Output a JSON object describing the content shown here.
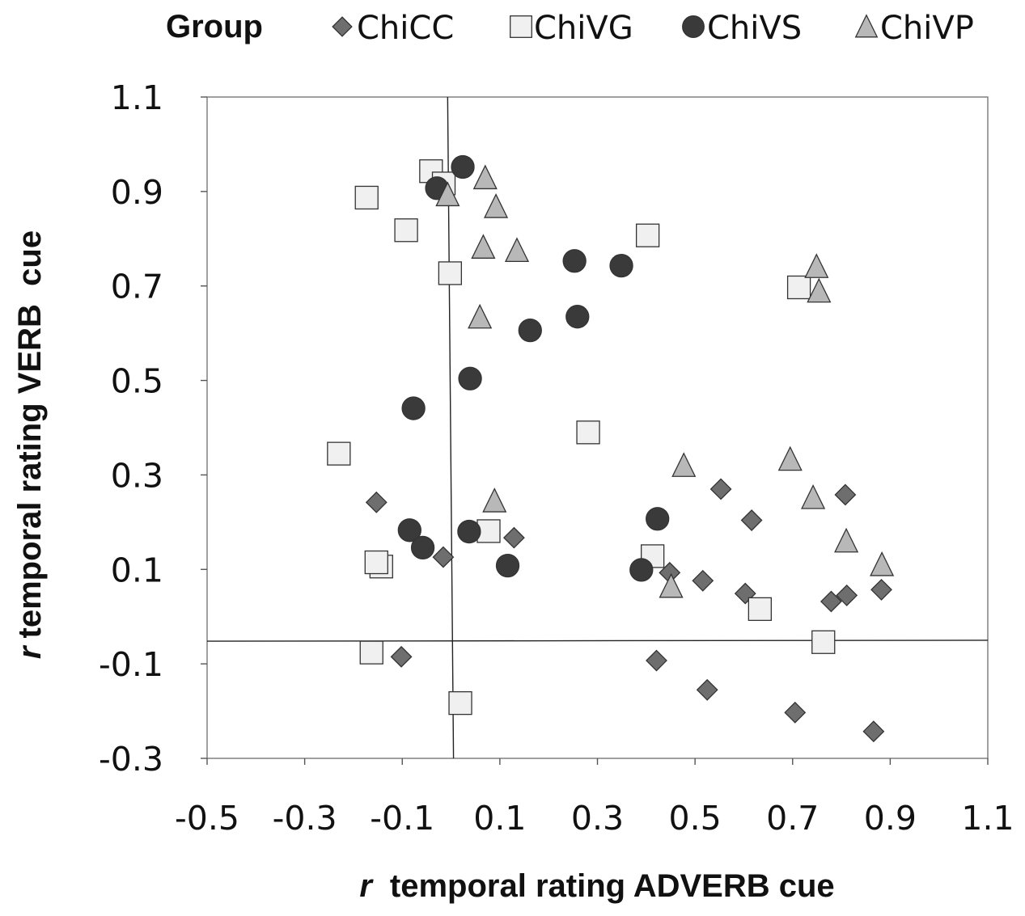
{
  "chart_data": {
    "type": "scatter",
    "legend_title": "Group",
    "legend_position": "top",
    "xlabel_italic": "r",
    "xlabel": "temporal rating ADVERB cue",
    "ylabel_italic": "r",
    "ylabel": "temporal rating VERB  cue",
    "xlim": [
      -0.5,
      1.1
    ],
    "ylim": [
      -0.3,
      1.1
    ],
    "xticks": [
      "-0.5",
      "-0.3",
      "-0.1",
      "0.1",
      "0.3",
      "0.5",
      "0.7",
      "0.9",
      "1.1"
    ],
    "yticks": [
      "1.1",
      "0.9",
      "0.7",
      "0.5",
      "0.3",
      "0.1",
      "-0.1",
      "-0.3"
    ],
    "reference_lines": {
      "horizontal": {
        "y_at_xmin": -0.052,
        "y_at_xmax": -0.05
      },
      "near_vertical": {
        "x_at_ymax": -0.007,
        "x_at_ymin": 0.005
      }
    },
    "series": [
      {
        "name": "ChiCC",
        "marker": "diamond",
        "color": "#6e6e6e",
        "points": [
          [
            -0.153,
            0.242
          ],
          [
            -0.102,
            -0.085
          ],
          [
            -0.016,
            0.126
          ],
          [
            0.129,
            0.167
          ],
          [
            0.448,
            0.093
          ],
          [
            0.516,
            0.076
          ],
          [
            0.553,
            0.27
          ],
          [
            0.603,
            0.049
          ],
          [
            0.616,
            0.204
          ],
          [
            0.779,
            0.032
          ],
          [
            0.811,
            0.045
          ],
          [
            0.808,
            0.258
          ],
          [
            0.882,
            0.057
          ],
          [
            0.421,
            -0.093
          ],
          [
            0.525,
            -0.155
          ],
          [
            0.705,
            -0.203
          ],
          [
            0.866,
            -0.243
          ]
        ]
      },
      {
        "name": "ChiVG",
        "marker": "square",
        "color": "#f0f0f0",
        "points": [
          [
            -0.173,
            0.887
          ],
          [
            -0.092,
            0.818
          ],
          [
            -0.041,
            0.943
          ],
          [
            -0.015,
            0.917
          ],
          [
            -0.002,
            0.727
          ],
          [
            0.403,
            0.807
          ],
          [
            0.281,
            0.39
          ],
          [
            -0.23,
            0.345
          ],
          [
            -0.143,
            0.106
          ],
          [
            -0.153,
            0.115
          ],
          [
            0.077,
            0.181
          ],
          [
            0.413,
            0.128
          ],
          [
            0.633,
            0.016
          ],
          [
            0.713,
            0.697
          ],
          [
            0.763,
            -0.054
          ],
          [
            -0.163,
            -0.076
          ],
          [
            0.019,
            -0.183
          ]
        ]
      },
      {
        "name": "ChiVS",
        "marker": "circle",
        "color": "#3a3a3a",
        "points": [
          [
            0.024,
            0.952
          ],
          [
            -0.029,
            0.907
          ],
          [
            0.253,
            0.753
          ],
          [
            0.349,
            0.743
          ],
          [
            0.162,
            0.606
          ],
          [
            0.259,
            0.635
          ],
          [
            0.039,
            0.504
          ],
          [
            -0.077,
            0.441
          ],
          [
            -0.085,
            0.183
          ],
          [
            -0.058,
            0.146
          ],
          [
            0.037,
            0.18
          ],
          [
            0.116,
            0.108
          ],
          [
            0.423,
            0.207
          ],
          [
            0.39,
            0.099
          ]
        ]
      },
      {
        "name": "ChiVP",
        "marker": "triangle",
        "color": "#b8b8b8",
        "points": [
          [
            0.07,
            0.929
          ],
          [
            -0.007,
            0.893
          ],
          [
            0.092,
            0.868
          ],
          [
            0.066,
            0.782
          ],
          [
            0.135,
            0.775
          ],
          [
            0.059,
            0.634
          ],
          [
            0.749,
            0.741
          ],
          [
            0.754,
            0.689
          ],
          [
            0.089,
            0.245
          ],
          [
            0.477,
            0.32
          ],
          [
            0.695,
            0.333
          ],
          [
            0.742,
            0.252
          ],
          [
            0.81,
            0.16
          ],
          [
            0.883,
            0.11
          ],
          [
            0.451,
            0.064
          ]
        ]
      }
    ]
  }
}
